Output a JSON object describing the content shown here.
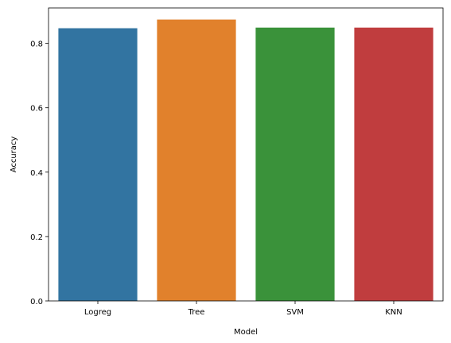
{
  "chart_data": {
    "type": "bar",
    "categories": [
      "Logreg",
      "Tree",
      "SVM",
      "KNN"
    ],
    "values": [
      0.847,
      0.874,
      0.849,
      0.849
    ],
    "colors": [
      "#3274a1",
      "#e1812c",
      "#3a923a",
      "#c03d3e"
    ],
    "xlabel": "Model",
    "ylabel": "Accuracy",
    "ylim": [
      0,
      0.91
    ],
    "yticks": [
      0.0,
      0.2,
      0.4,
      0.6,
      0.8
    ],
    "ytick_labels": [
      "0.0",
      "0.2",
      "0.4",
      "0.6",
      "0.8"
    ],
    "grid": false,
    "legend": "none"
  }
}
